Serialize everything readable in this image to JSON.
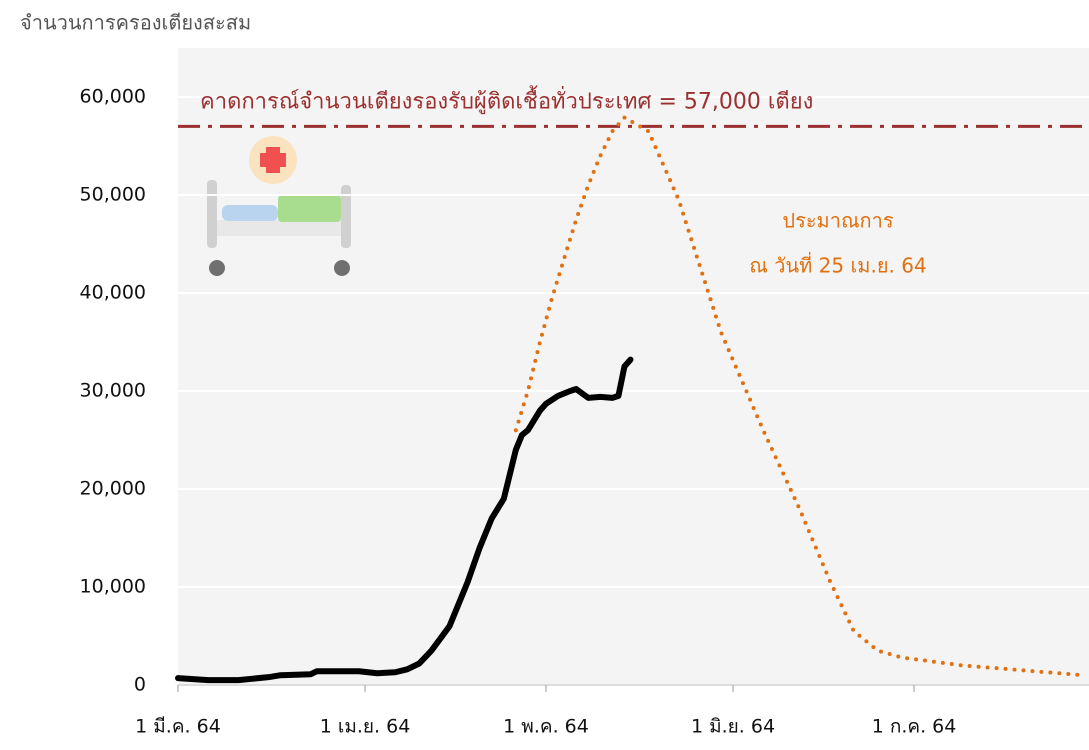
{
  "chart_data": {
    "type": "line",
    "ylabel": "จำนวนการครองเตียงสะสม",
    "xlim": [
      0,
      151
    ],
    "ylim": [
      0,
      65000
    ],
    "xticks": [
      {
        "value": 0,
        "label": "1 มี.ค. 64"
      },
      {
        "value": 31,
        "label": "1 เม.ย. 64"
      },
      {
        "value": 61,
        "label": "1 พ.ค. 64"
      },
      {
        "value": 92,
        "label": "1 มิ.ย. 64"
      },
      {
        "value": 122,
        "label": "1 ก.ค. 64"
      }
    ],
    "yticks": [
      0,
      {
        "value": 10000,
        "label": "10,000"
      },
      {
        "value": 20000,
        "label": "20,000"
      },
      {
        "value": 30000,
        "label": "30,000"
      },
      {
        "value": 40000,
        "label": "40,000"
      },
      {
        "value": 50000,
        "label": "50,000"
      },
      {
        "value": 60000,
        "label": "60,000"
      }
    ],
    "grid": true,
    "series": [
      {
        "color": "#000000",
        "style": "solid",
        "x": [
          0,
          5,
          10,
          15,
          17,
          22,
          23,
          30,
          33,
          36,
          38,
          40,
          42,
          45,
          48,
          50,
          52,
          54,
          56,
          57,
          58,
          60,
          61,
          63,
          65,
          66,
          68,
          70,
          72,
          73,
          74,
          75
        ],
        "values": [
          700,
          500,
          500,
          800,
          1000,
          1100,
          1400,
          1400,
          1200,
          1300,
          1600,
          2200,
          3500,
          6000,
          10500,
          14000,
          17000,
          19000,
          24000,
          25500,
          26000,
          28000,
          28700,
          29500,
          30000,
          30200,
          29300,
          29400,
          29300,
          29500,
          32500,
          33200
        ]
      },
      {
        "color": "#e07010",
        "style": "dotted",
        "x": [
          56,
          58,
          60,
          62,
          64,
          66,
          68,
          70,
          72,
          74,
          78,
          83,
          90,
          97,
          103,
          108,
          112,
          116,
          120,
          130,
          140,
          150
        ],
        "values": [
          26000,
          30000,
          35000,
          39500,
          43500,
          47500,
          51000,
          54000,
          56500,
          57900,
          56500,
          49500,
          36000,
          26000,
          18000,
          10700,
          5500,
          3500,
          2800,
          2000,
          1500,
          1000
        ]
      }
    ],
    "hline": {
      "value": 57000,
      "color": "#9b3030",
      "label": "คาดการณ์จำนวนเตียงรองรับผู้ติดเชื้อทั่วประเทศ = 57,000 เตียง"
    },
    "annotation": {
      "lines": [
        "ประมาณการ",
        "ณ วันที่ 25 เม.ย. 64"
      ],
      "color": "#e07010"
    }
  }
}
